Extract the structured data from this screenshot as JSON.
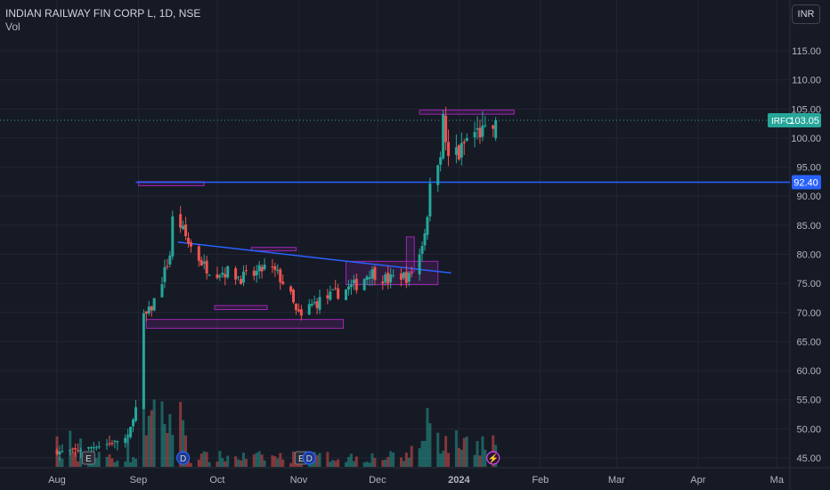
{
  "header": {
    "title": "INDIAN RAILWAY FIN CORP L, 1D, NSE",
    "volume_label": "Vol",
    "currency_button": "INR"
  },
  "chart_data": {
    "type": "candlestick",
    "symbol": "IRFC",
    "interval": "1D",
    "exchange": "NSE",
    "y_axis": {
      "ticks": [
        45.0,
        50.0,
        55.0,
        60.0,
        65.0,
        70.0,
        75.0,
        80.0,
        85.0,
        90.0,
        95.0,
        100.0,
        105.0,
        110.0,
        115.0
      ]
    },
    "x_axis": {
      "labels": [
        "Aug",
        "Sep",
        "Oct",
        "Nov",
        "Dec",
        "2024",
        "Feb",
        "Mar",
        "Apr",
        "Ma"
      ]
    },
    "last_price": {
      "ticker": "IRFC",
      "value": "103.05",
      "color": "#26a69a"
    },
    "horizontal_line": {
      "value": "92.40",
      "color": "#2962ff"
    },
    "trendline": {
      "from": [
        "Sep",
        82.0
      ],
      "to": [
        "Dec end",
        76.8
      ],
      "color": "#2962ff"
    },
    "markers": [
      "E",
      "D",
      "E",
      "D",
      "⚡"
    ],
    "colors": {
      "up": "#26a69a",
      "down": "#ef5350",
      "box": "#9c27b0"
    },
    "candles_approx": [
      {
        "d": "Sep start",
        "o": 69,
        "h": 70,
        "l": 67.5,
        "c": 68.5
      },
      {
        "d": "Sep mid",
        "o": 92,
        "h": 92.5,
        "l": 83,
        "c": 84
      },
      {
        "d": "Oct",
        "o": 78,
        "h": 80,
        "l": 74,
        "c": 77
      },
      {
        "d": "Nov start",
        "o": 72,
        "h": 74,
        "l": 66,
        "c": 69
      },
      {
        "d": "Nov end",
        "o": 75,
        "h": 77,
        "l": 74,
        "c": 76.5
      },
      {
        "d": "Dec start",
        "o": 77,
        "h": 78,
        "l": 74.5,
        "c": 75.5
      },
      {
        "d": "Dec mid",
        "o": 80,
        "h": 92,
        "l": 79,
        "c": 91
      },
      {
        "d": "Dec end",
        "o": 95,
        "h": 104,
        "l": 88,
        "c": 97
      },
      {
        "d": "Jan",
        "o": 100,
        "h": 104,
        "l": 99,
        "c": 103.05
      }
    ]
  }
}
